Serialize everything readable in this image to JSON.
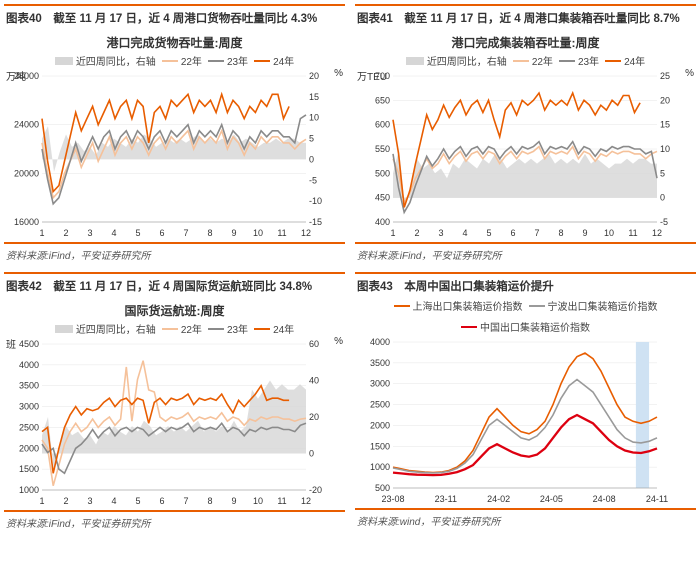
{
  "charts": [
    {
      "header": "图表40 截至 11 月 17 日，近 4 周港口货物吞吐量同比 4.3%",
      "title": "港口完成货物吞吐量:周度",
      "y_left_unit": "万吨",
      "y_right_unit": "%",
      "source": "资料来源:iFind，平安证券研究所",
      "legend_area": "近四周同比，右轴",
      "legend_lines": [
        {
          "label": "22年",
          "color": "#f5c19a"
        },
        {
          "label": "23年",
          "color": "#8a8a8a"
        },
        {
          "label": "24年",
          "color": "#e85d00"
        }
      ],
      "y_left": {
        "min": 16000,
        "max": 28000,
        "step": 4000
      },
      "y_right": {
        "min": -15,
        "max": 20,
        "step": 5
      },
      "x_cats": [
        "1",
        "2",
        "3",
        "4",
        "5",
        "6",
        "7",
        "8",
        "9",
        "10",
        "11",
        "12"
      ],
      "area_color": "#d6d6d6",
      "grid_color": "#e6e6e6",
      "area": [
        5,
        8,
        -3,
        2,
        6,
        3,
        4,
        2,
        3,
        1,
        4,
        3,
        5,
        4,
        3,
        5,
        4,
        6,
        5,
        3,
        4,
        5,
        4,
        5,
        4,
        5,
        6,
        4,
        5,
        4,
        5,
        4,
        6,
        4,
        5,
        4,
        3,
        4,
        4,
        5,
        4,
        5,
        5,
        4,
        4
      ],
      "series": {
        "s22": [
          22500,
          20000,
          18000,
          18500,
          20000,
          21000,
          22000,
          20500,
          21500,
          22500,
          21000,
          22000,
          23000,
          21500,
          22500,
          23000,
          22000,
          23000,
          22500,
          21500,
          22500,
          23000,
          22000,
          23000,
          22500,
          23000,
          23500,
          22000,
          23000,
          22500,
          23000,
          22500,
          23500,
          22000,
          23000,
          22500,
          21500,
          22500,
          22000,
          23000,
          22500,
          23000,
          23000,
          22500,
          22500,
          22000,
          22500,
          22800
        ],
        "s23": [
          22000,
          19500,
          17500,
          18000,
          19500,
          21000,
          22500,
          21000,
          22000,
          23000,
          22000,
          23000,
          23500,
          22000,
          23000,
          23500,
          22500,
          23500,
          23000,
          22000,
          23000,
          23500,
          22500,
          23500,
          23000,
          23500,
          24000,
          22500,
          23500,
          23000,
          23500,
          23000,
          24000,
          22500,
          23500,
          23000,
          22000,
          23000,
          22500,
          23500,
          23000,
          23500,
          23500,
          23000,
          23000,
          22500,
          24500,
          24800
        ],
        "s24": [
          24500,
          21000,
          18500,
          19000,
          21000,
          23000,
          25000,
          23500,
          24500,
          25500,
          24000,
          25000,
          26000,
          24500,
          25500,
          26000,
          24500,
          26000,
          25500,
          22500,
          25000,
          25500,
          24500,
          26000,
          25500,
          26000,
          26500,
          25000,
          26000,
          25500,
          26000,
          25000,
          26500,
          25000,
          26000,
          25500,
          24500,
          25500,
          25000,
          26000,
          25500,
          26500,
          26500,
          24500,
          25500
        ]
      }
    },
    {
      "header": "图表41 截至 11 月 17 日，近 4 周港口集装箱吞吐量同比 8.7%",
      "title": "港口完成集装箱吞吐量:周度",
      "y_left_unit": "万TEU",
      "y_right_unit": "%",
      "source": "资料来源:iFind，平安证券研究所",
      "legend_area": "近四周同比，右轴",
      "legend_lines": [
        {
          "label": "22年",
          "color": "#f5c19a"
        },
        {
          "label": "23年",
          "color": "#8a8a8a"
        },
        {
          "label": "24年",
          "color": "#e85d00"
        }
      ],
      "y_left": {
        "min": 400,
        "max": 700,
        "step": 50
      },
      "y_right": {
        "min": -5,
        "max": 25,
        "step": 5
      },
      "x_cats": [
        "1",
        "2",
        "3",
        "4",
        "5",
        "6",
        "7",
        "8",
        "9",
        "10",
        "11",
        "12"
      ],
      "area_color": "#d6d6d6",
      "grid_color": "#e6e6e6",
      "area": [
        5,
        10,
        -2,
        3,
        8,
        6,
        7,
        5,
        6,
        4,
        7,
        6,
        8,
        7,
        6,
        8,
        7,
        9,
        8,
        6,
        7,
        8,
        7,
        8,
        7,
        8,
        9,
        7,
        8,
        7,
        8,
        7,
        9,
        7,
        8,
        7,
        6,
        7,
        7,
        8,
        7,
        8,
        8,
        7,
        7
      ],
      "series": {
        "s22": [
          530,
          500,
          440,
          460,
          490,
          510,
          530,
          510,
          520,
          540,
          520,
          535,
          545,
          525,
          540,
          545,
          530,
          545,
          540,
          520,
          535,
          545,
          530,
          545,
          540,
          545,
          555,
          530,
          545,
          540,
          545,
          540,
          555,
          530,
          545,
          540,
          525,
          540,
          535,
          545,
          540,
          545,
          545,
          540,
          540,
          530,
          540,
          545
        ],
        "s23": [
          540,
          470,
          420,
          440,
          475,
          505,
          535,
          515,
          530,
          550,
          530,
          545,
          555,
          535,
          550,
          555,
          540,
          555,
          550,
          530,
          545,
          555,
          540,
          555,
          550,
          555,
          565,
          540,
          555,
          550,
          555,
          550,
          565,
          540,
          555,
          550,
          535,
          550,
          545,
          555,
          550,
          555,
          555,
          550,
          550,
          540,
          545,
          490
        ],
        "s24": [
          610,
          540,
          430,
          465,
          520,
          570,
          620,
          590,
          610,
          640,
          615,
          635,
          650,
          620,
          640,
          650,
          625,
          650,
          610,
          575,
          630,
          645,
          620,
          650,
          640,
          650,
          665,
          630,
          650,
          640,
          650,
          640,
          665,
          630,
          650,
          640,
          620,
          640,
          630,
          650,
          640,
          660,
          660,
          625,
          645
        ]
      }
    },
    {
      "header": "图表42 截至 11 月 17 日，近 4 周国际货运航班同比 34.8%",
      "title": "国际货运航班:周度",
      "y_left_unit": "班",
      "y_right_unit": "%",
      "source": "资料来源:iFind，平安证券研究所",
      "legend_area": "近四周同比，右轴",
      "legend_lines": [
        {
          "label": "22年",
          "color": "#f5c19a"
        },
        {
          "label": "23年",
          "color": "#8a8a8a"
        },
        {
          "label": "24年",
          "color": "#e85d00"
        }
      ],
      "y_left": {
        "min": 1000,
        "max": 4500,
        "step": 500
      },
      "y_right": {
        "min": -20,
        "max": 60,
        "step": 20
      },
      "x_cats": [
        "1",
        "2",
        "3",
        "4",
        "5",
        "6",
        "7",
        "8",
        "9",
        "10",
        "11",
        "12"
      ],
      "area_color": "#d6d6d6",
      "grid_color": "#e6e6e6",
      "area": [
        10,
        20,
        -10,
        5,
        15,
        10,
        12,
        8,
        10,
        5,
        12,
        10,
        15,
        12,
        10,
        15,
        12,
        18,
        15,
        10,
        12,
        15,
        12,
        15,
        12,
        15,
        18,
        12,
        15,
        12,
        15,
        12,
        18,
        12,
        15,
        35,
        30,
        35,
        40,
        35,
        38,
        35,
        35,
        38,
        35
      ],
      "series": {
        "s22": [
          2200,
          2000,
          1100,
          1600,
          2100,
          2400,
          2600,
          2400,
          2500,
          2700,
          2500,
          2650,
          2750,
          2550,
          2700,
          3950,
          2650,
          3650,
          4100,
          3400,
          3350,
          2750,
          2650,
          2750,
          2700,
          2750,
          2850,
          2650,
          2750,
          2700,
          2750,
          2700,
          2850,
          2650,
          2750,
          2700,
          2550,
          2700,
          2650,
          2750,
          2700,
          2750,
          2750,
          2700,
          2700,
          2650,
          2700,
          2720
        ],
        "s23": [
          2100,
          1900,
          2000,
          1500,
          1400,
          1700,
          2000,
          2100,
          2250,
          2450,
          2250,
          2400,
          2500,
          2300,
          2450,
          2500,
          2400,
          2500,
          2450,
          2300,
          2400,
          2500,
          2400,
          2500,
          2450,
          2500,
          2600,
          2400,
          2500,
          2450,
          2500,
          2450,
          2600,
          2400,
          2500,
          2450,
          2300,
          2450,
          2400,
          2500,
          2450,
          2500,
          2500,
          2450,
          2450,
          2400,
          2550,
          2600
        ],
        "s24": [
          2400,
          2500,
          1400,
          2000,
          2500,
          2800,
          3000,
          2800,
          2950,
          2900,
          2950,
          3100,
          3200,
          3000,
          3150,
          3200,
          3050,
          3200,
          3150,
          2600,
          3100,
          3200,
          3050,
          3200,
          3150,
          3200,
          3300,
          3050,
          3200,
          3150,
          3200,
          3150,
          3300,
          3050,
          2850,
          3150,
          3000,
          3150,
          3300,
          3500,
          3150,
          3200,
          3200,
          3150,
          3150
        ]
      }
    },
    {
      "header": "图表43 本周中国出口集装箱运价提升",
      "title": "",
      "y_left_unit": "",
      "y_right_unit": "",
      "source": "资料来源:wind，平安证券研究所",
      "single_axis": true,
      "legend_lines": [
        {
          "label": "上海出口集装箱运价指数",
          "color": "#e85d00"
        },
        {
          "label": "宁波出口集装箱运价指数",
          "color": "#9a9a9a"
        },
        {
          "label": "中国出口集装箱运价指数",
          "color": "#dd0010"
        }
      ],
      "y_left": {
        "min": 500,
        "max": 4000,
        "step": 500
      },
      "x_cats": [
        "23-08",
        "23-11",
        "24-02",
        "24-05",
        "24-08",
        "24-11"
      ],
      "highlight": {
        "color": "#cfe2f3",
        "from": 0.92,
        "to": 0.97
      },
      "grid_color": "#e6e6e6",
      "seriesX": {
        "shanghai": [
          1000,
          960,
          920,
          900,
          880,
          870,
          880,
          920,
          1000,
          1150,
          1400,
          1800,
          2200,
          2400,
          2200,
          2000,
          1850,
          1800,
          1900,
          2100,
          2500,
          3000,
          3400,
          3650,
          3733,
          3600,
          3300,
          2900,
          2500,
          2200,
          2100,
          2050,
          2100,
          2200
        ],
        "ningbo": [
          980,
          940,
          900,
          880,
          870,
          860,
          870,
          900,
          970,
          1100,
          1300,
          1650,
          2000,
          2150,
          2000,
          1850,
          1700,
          1650,
          1750,
          1950,
          2250,
          2650,
          2950,
          3100,
          2950,
          2800,
          2500,
          2200,
          1900,
          1700,
          1600,
          1580,
          1620,
          1700
        ],
        "china": [
          870,
          850,
          830,
          820,
          815,
          810,
          815,
          840,
          880,
          950,
          1050,
          1250,
          1450,
          1550,
          1450,
          1350,
          1280,
          1250,
          1300,
          1450,
          1700,
          1950,
          2150,
          2250,
          2150,
          2050,
          1850,
          1650,
          1500,
          1400,
          1350,
          1340,
          1380,
          1450
        ]
      }
    }
  ],
  "line_width": 1.6,
  "line_width_bold": 2.3
}
